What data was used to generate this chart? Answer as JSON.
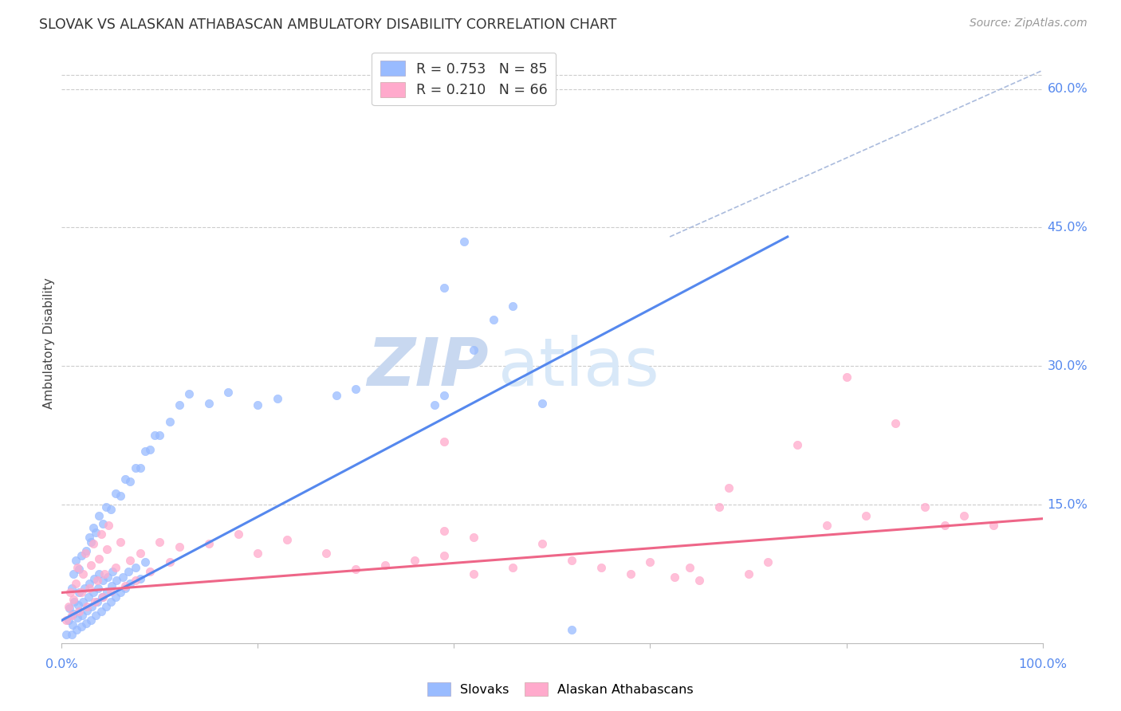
{
  "title": "SLOVAK VS ALASKAN ATHABASCAN AMBULATORY DISABILITY CORRELATION CHART",
  "source": "Source: ZipAtlas.com",
  "ylabel": "Ambulatory Disability",
  "xlim": [
    0.0,
    1.0
  ],
  "ylim": [
    0.0,
    0.65
  ],
  "blue_color": "#5588ee",
  "pink_color": "#ee6688",
  "blue_scatter_color": "#99bbff",
  "pink_scatter_color": "#ffaacc",
  "dashed_line_color": "#aabbdd",
  "slovaks_label": "Slovaks",
  "athabascans_label": "Alaskan Athabascans",
  "watermark_zip": "ZIP",
  "watermark_atlas": "atlas",
  "background_color": "#ffffff",
  "grid_color": "#cccccc",
  "blue_line": [
    [
      0.0,
      0.025
    ],
    [
      0.74,
      0.44
    ]
  ],
  "pink_line": [
    [
      0.0,
      0.055
    ],
    [
      1.0,
      0.135
    ]
  ],
  "dashed_line": [
    [
      0.62,
      0.44
    ],
    [
      1.0,
      0.62
    ]
  ],
  "blue_points": [
    [
      0.005,
      0.01
    ],
    [
      0.007,
      0.025
    ],
    [
      0.008,
      0.038
    ],
    [
      0.01,
      0.01
    ],
    [
      0.011,
      0.02
    ],
    [
      0.012,
      0.032
    ],
    [
      0.013,
      0.045
    ],
    [
      0.015,
      0.015
    ],
    [
      0.016,
      0.028
    ],
    [
      0.017,
      0.042
    ],
    [
      0.018,
      0.055
    ],
    [
      0.02,
      0.018
    ],
    [
      0.021,
      0.03
    ],
    [
      0.022,
      0.045
    ],
    [
      0.023,
      0.06
    ],
    [
      0.025,
      0.022
    ],
    [
      0.026,
      0.036
    ],
    [
      0.027,
      0.05
    ],
    [
      0.028,
      0.065
    ],
    [
      0.03,
      0.025
    ],
    [
      0.031,
      0.04
    ],
    [
      0.032,
      0.055
    ],
    [
      0.033,
      0.07
    ],
    [
      0.035,
      0.03
    ],
    [
      0.036,
      0.045
    ],
    [
      0.037,
      0.06
    ],
    [
      0.038,
      0.075
    ],
    [
      0.04,
      0.035
    ],
    [
      0.041,
      0.05
    ],
    [
      0.042,
      0.068
    ],
    [
      0.045,
      0.04
    ],
    [
      0.046,
      0.056
    ],
    [
      0.047,
      0.072
    ],
    [
      0.05,
      0.045
    ],
    [
      0.051,
      0.062
    ],
    [
      0.052,
      0.078
    ],
    [
      0.055,
      0.05
    ],
    [
      0.056,
      0.068
    ],
    [
      0.06,
      0.055
    ],
    [
      0.062,
      0.072
    ],
    [
      0.065,
      0.06
    ],
    [
      0.068,
      0.078
    ],
    [
      0.07,
      0.065
    ],
    [
      0.075,
      0.082
    ],
    [
      0.08,
      0.07
    ],
    [
      0.085,
      0.088
    ],
    [
      0.01,
      0.06
    ],
    [
      0.012,
      0.075
    ],
    [
      0.014,
      0.09
    ],
    [
      0.018,
      0.08
    ],
    [
      0.02,
      0.095
    ],
    [
      0.025,
      0.1
    ],
    [
      0.028,
      0.115
    ],
    [
      0.03,
      0.11
    ],
    [
      0.032,
      0.125
    ],
    [
      0.035,
      0.12
    ],
    [
      0.038,
      0.138
    ],
    [
      0.042,
      0.13
    ],
    [
      0.045,
      0.148
    ],
    [
      0.05,
      0.145
    ],
    [
      0.055,
      0.162
    ],
    [
      0.06,
      0.16
    ],
    [
      0.065,
      0.178
    ],
    [
      0.07,
      0.175
    ],
    [
      0.075,
      0.19
    ],
    [
      0.08,
      0.19
    ],
    [
      0.085,
      0.208
    ],
    [
      0.09,
      0.21
    ],
    [
      0.095,
      0.225
    ],
    [
      0.1,
      0.225
    ],
    [
      0.11,
      0.24
    ],
    [
      0.12,
      0.258
    ],
    [
      0.13,
      0.27
    ],
    [
      0.15,
      0.26
    ],
    [
      0.17,
      0.272
    ],
    [
      0.2,
      0.258
    ],
    [
      0.22,
      0.265
    ],
    [
      0.28,
      0.268
    ],
    [
      0.3,
      0.275
    ],
    [
      0.38,
      0.258
    ],
    [
      0.39,
      0.385
    ],
    [
      0.41,
      0.435
    ],
    [
      0.42,
      0.318
    ],
    [
      0.44,
      0.35
    ],
    [
      0.39,
      0.268
    ],
    [
      0.46,
      0.365
    ],
    [
      0.49,
      0.26
    ],
    [
      0.52,
      0.015
    ]
  ],
  "pink_points": [
    [
      0.005,
      0.025
    ],
    [
      0.007,
      0.04
    ],
    [
      0.009,
      0.055
    ],
    [
      0.01,
      0.03
    ],
    [
      0.012,
      0.048
    ],
    [
      0.014,
      0.065
    ],
    [
      0.016,
      0.082
    ],
    [
      0.018,
      0.035
    ],
    [
      0.02,
      0.055
    ],
    [
      0.022,
      0.075
    ],
    [
      0.024,
      0.098
    ],
    [
      0.026,
      0.04
    ],
    [
      0.028,
      0.06
    ],
    [
      0.03,
      0.085
    ],
    [
      0.032,
      0.108
    ],
    [
      0.034,
      0.045
    ],
    [
      0.036,
      0.068
    ],
    [
      0.038,
      0.092
    ],
    [
      0.04,
      0.118
    ],
    [
      0.042,
      0.05
    ],
    [
      0.044,
      0.075
    ],
    [
      0.046,
      0.102
    ],
    [
      0.048,
      0.128
    ],
    [
      0.05,
      0.056
    ],
    [
      0.055,
      0.082
    ],
    [
      0.06,
      0.11
    ],
    [
      0.065,
      0.062
    ],
    [
      0.07,
      0.09
    ],
    [
      0.075,
      0.068
    ],
    [
      0.08,
      0.098
    ],
    [
      0.09,
      0.078
    ],
    [
      0.1,
      0.11
    ],
    [
      0.11,
      0.088
    ],
    [
      0.12,
      0.105
    ],
    [
      0.15,
      0.108
    ],
    [
      0.18,
      0.118
    ],
    [
      0.2,
      0.098
    ],
    [
      0.23,
      0.112
    ],
    [
      0.27,
      0.098
    ],
    [
      0.3,
      0.08
    ],
    [
      0.33,
      0.085
    ],
    [
      0.36,
      0.09
    ],
    [
      0.39,
      0.095
    ],
    [
      0.42,
      0.075
    ],
    [
      0.39,
      0.122
    ],
    [
      0.46,
      0.082
    ],
    [
      0.39,
      0.218
    ],
    [
      0.42,
      0.115
    ],
    [
      0.49,
      0.108
    ],
    [
      0.52,
      0.09
    ],
    [
      0.55,
      0.082
    ],
    [
      0.58,
      0.075
    ],
    [
      0.6,
      0.088
    ],
    [
      0.625,
      0.072
    ],
    [
      0.64,
      0.082
    ],
    [
      0.65,
      0.068
    ],
    [
      0.67,
      0.148
    ],
    [
      0.68,
      0.168
    ],
    [
      0.7,
      0.075
    ],
    [
      0.72,
      0.088
    ],
    [
      0.75,
      0.215
    ],
    [
      0.78,
      0.128
    ],
    [
      0.8,
      0.288
    ],
    [
      0.82,
      0.138
    ],
    [
      0.85,
      0.238
    ],
    [
      0.88,
      0.148
    ],
    [
      0.9,
      0.128
    ],
    [
      0.92,
      0.138
    ],
    [
      0.95,
      0.128
    ]
  ]
}
